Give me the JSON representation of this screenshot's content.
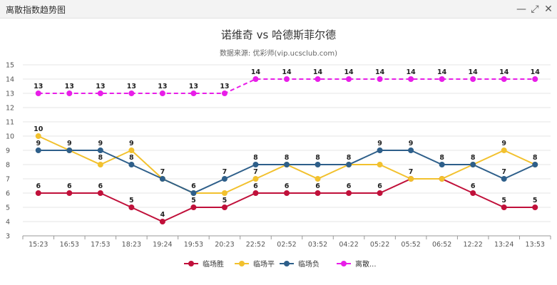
{
  "window": {
    "title": "离散指数趋势图",
    "buttons": {
      "minimize": "—",
      "maximize": "⤢",
      "close": "✕"
    }
  },
  "colors": {
    "win": "#c0103a",
    "draw": "#f2c12e",
    "loss": "#2e5f8a",
    "disp": "#e81ee8",
    "grid": "#e6e6e6",
    "axis": "#555555"
  },
  "chart_data": {
    "type": "line",
    "title": "诺维奇 vs 哈德斯菲尔德",
    "subtitle": "数据来源: 优彩师(vip.ucsclub.com)",
    "categories": [
      "15:23",
      "16:53",
      "17:53",
      "18:23",
      "19:24",
      "19:53",
      "20:23",
      "22:52",
      "02:52",
      "03:52",
      "04:22",
      "05:22",
      "05:52",
      "06:52",
      "12:22",
      "13:24",
      "13:53"
    ],
    "ylim": [
      3,
      15
    ],
    "yticks": [
      3,
      4,
      5,
      6,
      7,
      8,
      9,
      10,
      11,
      12,
      13,
      14,
      15
    ],
    "grid": true,
    "legend_position": "bottom",
    "series": [
      {
        "key": "win",
        "name": "临场胜",
        "values": [
          6,
          6,
          6,
          5,
          4,
          5,
          5,
          6,
          6,
          6,
          6,
          6,
          7,
          7,
          6,
          5,
          5
        ]
      },
      {
        "key": "draw",
        "name": "临场平",
        "values": [
          10,
          9,
          8,
          9,
          7,
          6,
          6,
          7,
          8,
          7,
          8,
          8,
          7,
          7,
          8,
          9,
          8
        ]
      },
      {
        "key": "loss",
        "name": "临场负",
        "values": [
          9,
          9,
          9,
          8,
          7,
          6,
          7,
          8,
          8,
          8,
          8,
          9,
          9,
          8,
          8,
          7,
          8
        ]
      },
      {
        "key": "disp",
        "name": "离散...",
        "dashed": true,
        "values": [
          13,
          13,
          13,
          13,
          13,
          13,
          13,
          14,
          14,
          14,
          14,
          14,
          14,
          14,
          14,
          14,
          14
        ]
      }
    ],
    "point_labels": {
      "win": [
        6,
        6,
        6,
        5,
        4,
        5,
        5,
        6,
        6,
        6,
        6,
        6,
        7,
        null,
        6,
        5,
        5
      ],
      "draw": [
        10,
        null,
        8,
        9,
        null,
        null,
        null,
        7,
        null,
        null,
        null,
        null,
        null,
        null,
        null,
        9,
        null
      ],
      "loss": [
        9,
        9,
        9,
        8,
        7,
        6,
        7,
        8,
        8,
        8,
        8,
        9,
        9,
        8,
        8,
        7,
        8
      ],
      "disp": [
        13,
        13,
        13,
        13,
        13,
        13,
        13,
        14,
        14,
        14,
        14,
        14,
        14,
        14,
        14,
        14,
        14
      ]
    }
  }
}
